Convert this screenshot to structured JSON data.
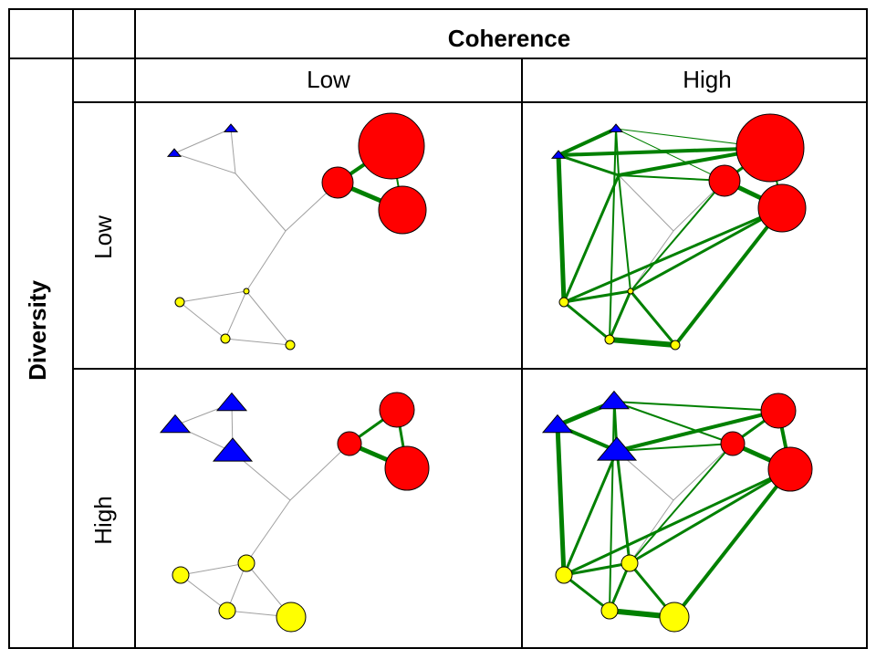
{
  "headers": {
    "column_group": "Coherence",
    "row_group": "Diversity",
    "columns": [
      "Low",
      "High"
    ],
    "rows": [
      "Low",
      "High"
    ]
  },
  "colors": {
    "red_cluster": "#ff0000",
    "blue_cluster": "#0000ff",
    "yellow_cluster": "#ffff00",
    "within_edge": "#008000",
    "tree_edge": "#a0a0a0",
    "grid": "#000000"
  },
  "legend_shapes": {
    "red_cluster": "circle",
    "blue_cluster": "triangle",
    "yellow_cluster": "circle"
  }
}
